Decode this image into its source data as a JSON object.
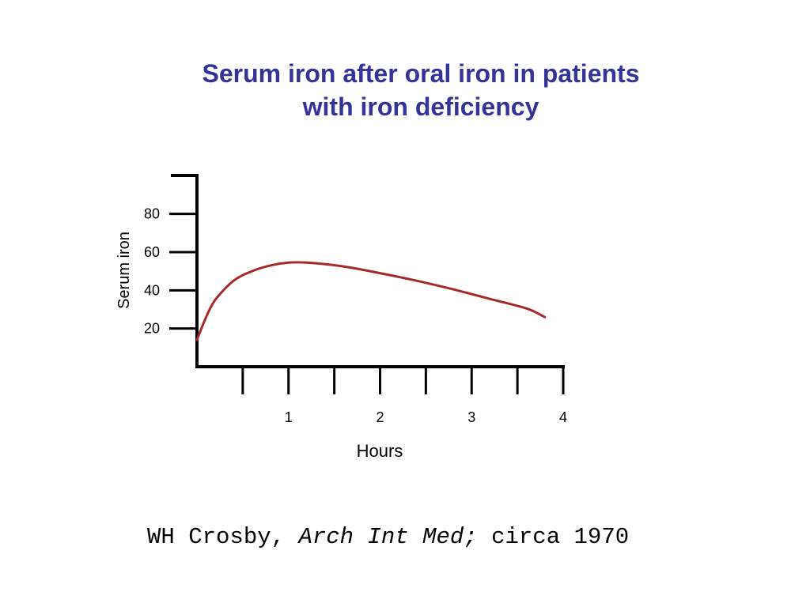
{
  "slide": {
    "title_line1": "Serum iron after oral iron in patients",
    "title_line2": "with iron deficiency",
    "citation": {
      "author": "WH Crosby, ",
      "journal": "Arch Int Med;",
      "date": " circa 1970"
    }
  },
  "chart_data": {
    "type": "line",
    "title": "Serum iron after oral iron in patients with iron deficiency",
    "xlabel": "Hours",
    "ylabel": "Serum iron",
    "xlim": [
      0,
      4
    ],
    "ylim": [
      0,
      100
    ],
    "x_ticks": [
      0.5,
      1,
      1.5,
      2,
      2.5,
      3,
      3.5,
      4
    ],
    "x_tick_labels": [
      "",
      "1",
      "",
      "2",
      "",
      "3",
      "",
      "4"
    ],
    "y_ticks": [
      20,
      40,
      60,
      80
    ],
    "y_tick_labels": [
      "20",
      "40",
      "60",
      "80"
    ],
    "grid": false,
    "series": [
      {
        "color": "#a52a2a",
        "x": [
          0,
          0.1,
          0.2,
          0.4,
          0.6,
          0.8,
          1.0,
          1.2,
          1.6,
          2.0,
          2.4,
          2.8,
          3.2,
          3.6,
          3.8
        ],
        "y": [
          14,
          26,
          35,
          45,
          50,
          53,
          54.5,
          54.5,
          52.5,
          49,
          45,
          40.5,
          35.5,
          30.5,
          26
        ]
      }
    ]
  }
}
